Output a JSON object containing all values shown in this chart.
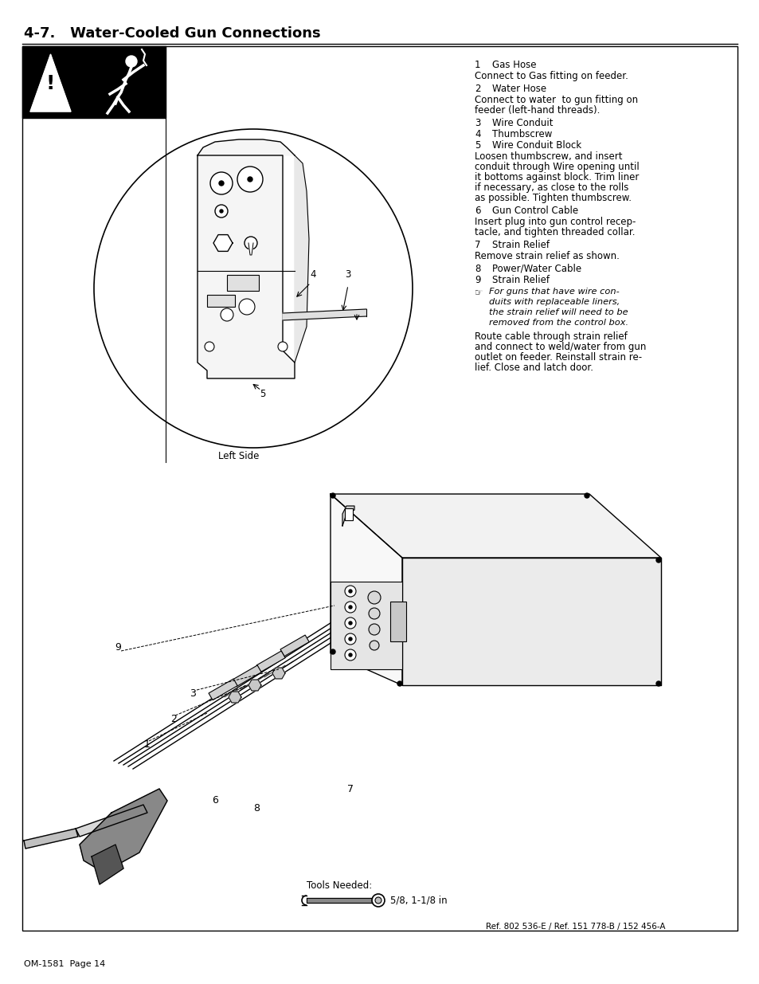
{
  "title": "4-7.   Water-Cooled Gun Connections",
  "page_label": "OM-1581  Page 14",
  "ref_label": "Ref. 802 536-E / Ref. 151 778-B / 152 456-A",
  "tools_needed": "Tools Needed:",
  "tools_size": "5/8, 1-1/8 in",
  "right_items": [
    {
      "num": "1",
      "label": "Gas Hose",
      "desc": "Connect to Gas fitting on feeder."
    },
    {
      "num": "2",
      "label": "Water Hose",
      "desc": "Connect to water  to gun fitting on\nfeeder (left-hand threads)."
    },
    {
      "num": "3",
      "label": "Wire Conduit",
      "desc": null
    },
    {
      "num": "4",
      "label": "Thumbscrew",
      "desc": null
    },
    {
      "num": "5",
      "label": "Wire Conduit Block",
      "desc": "Loosen thumbscrew, and insert\nconduit through Wire opening until\nit bottoms against block. Trim liner\nif necessary, as close to the rolls\nas possible. Tighten thumbscrew."
    },
    {
      "num": "6",
      "label": "Gun Control Cable",
      "desc": "Insert plug into gun control recep-\ntacle, and tighten threaded collar."
    },
    {
      "num": "7",
      "label": "Strain Relief",
      "desc": "Remove strain relief as shown."
    },
    {
      "num": "8",
      "label": "Power/Water Cable",
      "desc": null
    },
    {
      "num": "9",
      "label": "Strain Relief",
      "desc": null
    }
  ],
  "note_italic": "For guns that have wire con-\nduits with replaceable liners,\nthe strain relief will need to be\nremoved from the control box.",
  "note_after": "Route cable through strain relief\nand connect to weld/water from gun\noutlet on feeder. Reinstall strain re-\nlief. Close and latch door.",
  "bg_color": "#ffffff",
  "text_color": "#000000",
  "title_fontsize": 13,
  "body_fontsize": 8.5
}
